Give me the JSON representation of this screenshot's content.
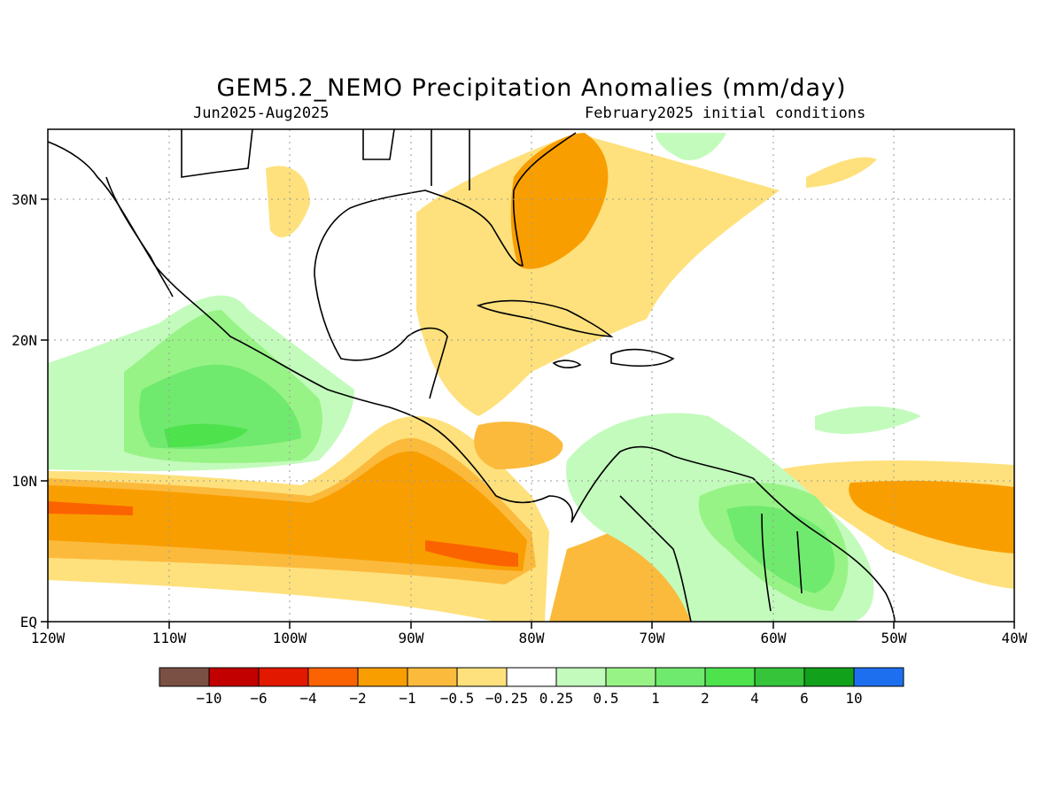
{
  "title": "GEM5.2_NEMO Precipitation Anomalies (mm/day)",
  "period": "Jun2025-Aug2025",
  "init": "February2025 initial conditions",
  "lat_labels": [
    "30N",
    "20N",
    "10N",
    "EQ"
  ],
  "lon_labels": [
    "120W",
    "110W",
    "100W",
    "90W",
    "80W",
    "70W",
    "60W",
    "50W",
    "40W"
  ],
  "colorbar": {
    "colors": [
      "#7a5045",
      "#c30000",
      "#e21800",
      "#fb6300",
      "#f99e00",
      "#fbba3c",
      "#fee17c",
      "#ffffff",
      "#c3fbbc",
      "#98f386",
      "#70ea6e",
      "#4ee24d",
      "#35c43a",
      "#12a11a",
      "#1e6ff0"
    ],
    "labels": [
      "-10",
      "-6",
      "-4",
      "-2",
      "-1",
      "-0.5",
      "-0.25",
      "0.25",
      "0.5",
      "1",
      "2",
      "4",
      "6",
      "10"
    ]
  }
}
